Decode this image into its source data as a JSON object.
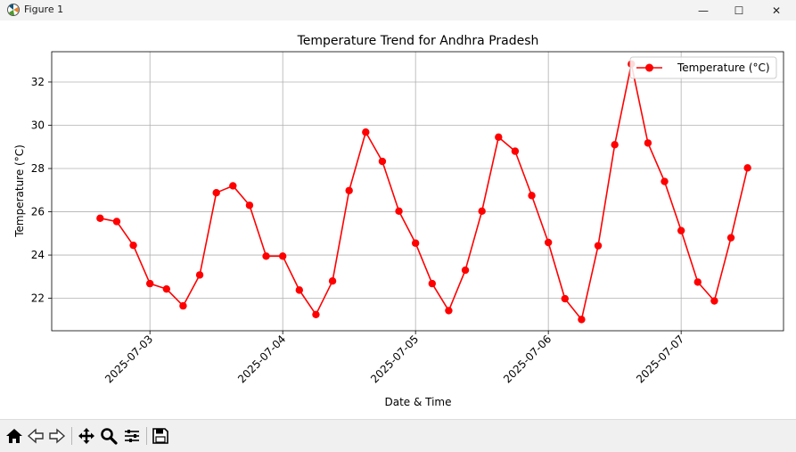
{
  "window": {
    "title": "Figure 1",
    "controls": {
      "minimize": "—",
      "maximize": "☐",
      "close": "✕"
    }
  },
  "icons": {
    "app": "matplotlib-figure-icon",
    "toolbar": [
      "home-icon",
      "back-arrow-icon",
      "forward-arrow-icon",
      "pan-move-icon",
      "zoom-magnifier-icon",
      "configure-subplots-icon",
      "save-floppy-icon"
    ]
  },
  "chart_data": {
    "type": "line",
    "title": "Temperature Trend for Andhra Pradesh",
    "xlabel": "Date & Time",
    "ylabel": "Temperature (°C)",
    "x_ticks": [
      "2025-07-03",
      "2025-07-04",
      "2025-07-05",
      "2025-07-06",
      "2025-07-07"
    ],
    "y_ticks": [
      22,
      24,
      26,
      28,
      30,
      32
    ],
    "xlim": [
      "2025-07-02 06:15",
      "2025-07-07 18:30"
    ],
    "ylim": [
      20.5,
      33.4
    ],
    "grid": true,
    "legend": {
      "placement": "top-right",
      "entries": [
        "Temperature (°C)"
      ]
    },
    "color": "#ff0000",
    "x": [
      "2025-07-02 15:00",
      "2025-07-02 18:00",
      "2025-07-02 21:00",
      "2025-07-03 00:00",
      "2025-07-03 03:00",
      "2025-07-03 06:00",
      "2025-07-03 09:00",
      "2025-07-03 12:00",
      "2025-07-03 15:00",
      "2025-07-03 18:00",
      "2025-07-03 21:00",
      "2025-07-04 00:00",
      "2025-07-04 03:00",
      "2025-07-04 06:00",
      "2025-07-04 09:00",
      "2025-07-04 12:00",
      "2025-07-04 15:00",
      "2025-07-04 18:00",
      "2025-07-04 21:00",
      "2025-07-05 00:00",
      "2025-07-05 03:00",
      "2025-07-05 06:00",
      "2025-07-05 09:00",
      "2025-07-05 12:00",
      "2025-07-05 15:00",
      "2025-07-05 18:00",
      "2025-07-05 21:00",
      "2025-07-06 00:00",
      "2025-07-06 03:00",
      "2025-07-06 06:00",
      "2025-07-06 09:00",
      "2025-07-06 12:00",
      "2025-07-06 15:00",
      "2025-07-06 18:00",
      "2025-07-06 21:00",
      "2025-07-07 00:00",
      "2025-07-07 03:00",
      "2025-07-07 06:00",
      "2025-07-07 09:00",
      "2025-07-07 12:00"
    ],
    "series": [
      {
        "name": "Temperature (°C)",
        "values": [
          25.7,
          25.55,
          24.45,
          22.68,
          22.43,
          21.65,
          23.08,
          26.88,
          27.2,
          26.3,
          23.95,
          23.95,
          22.38,
          21.25,
          22.8,
          26.98,
          29.68,
          28.33,
          26.03,
          24.55,
          22.68,
          21.43,
          23.3,
          26.03,
          29.45,
          28.8,
          26.75,
          24.58,
          21.98,
          21.02,
          24.43,
          29.1,
          32.83,
          29.18,
          27.4,
          25.13,
          22.75,
          21.88,
          24.8,
          28.03
        ]
      }
    ]
  }
}
